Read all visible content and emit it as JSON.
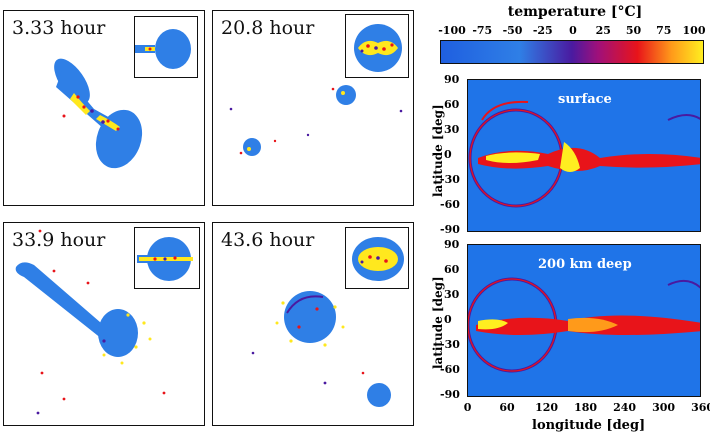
{
  "panels": [
    {
      "time": "3.33 hour"
    },
    {
      "time": "20.8 hour"
    },
    {
      "time": "33.9 hour"
    },
    {
      "time": "43.6 hour"
    }
  ],
  "colorbar": {
    "title": "temperature [°C]",
    "ticks": [
      "-100",
      "-75",
      "-50",
      "-25",
      "0",
      "25",
      "50",
      "75",
      "100"
    ]
  },
  "maps": [
    {
      "label": "surface"
    },
    {
      "label": "200 km deep"
    }
  ],
  "axes": {
    "ylabel": "latitude [deg]",
    "xlabel": "longitude [deg]",
    "lat_ticks": [
      "90",
      "60",
      "30",
      "0",
      "-30",
      "-60",
      "-90"
    ],
    "lon_ticks": [
      "0",
      "60",
      "120",
      "180",
      "240",
      "300",
      "360"
    ]
  },
  "colors": {
    "body_blue": "#2f7fe6",
    "map_blue": "#1f74e8",
    "hot_yellow": "#ffee20",
    "hot_red": "#e8141a",
    "purple": "#4a1aa0"
  }
}
